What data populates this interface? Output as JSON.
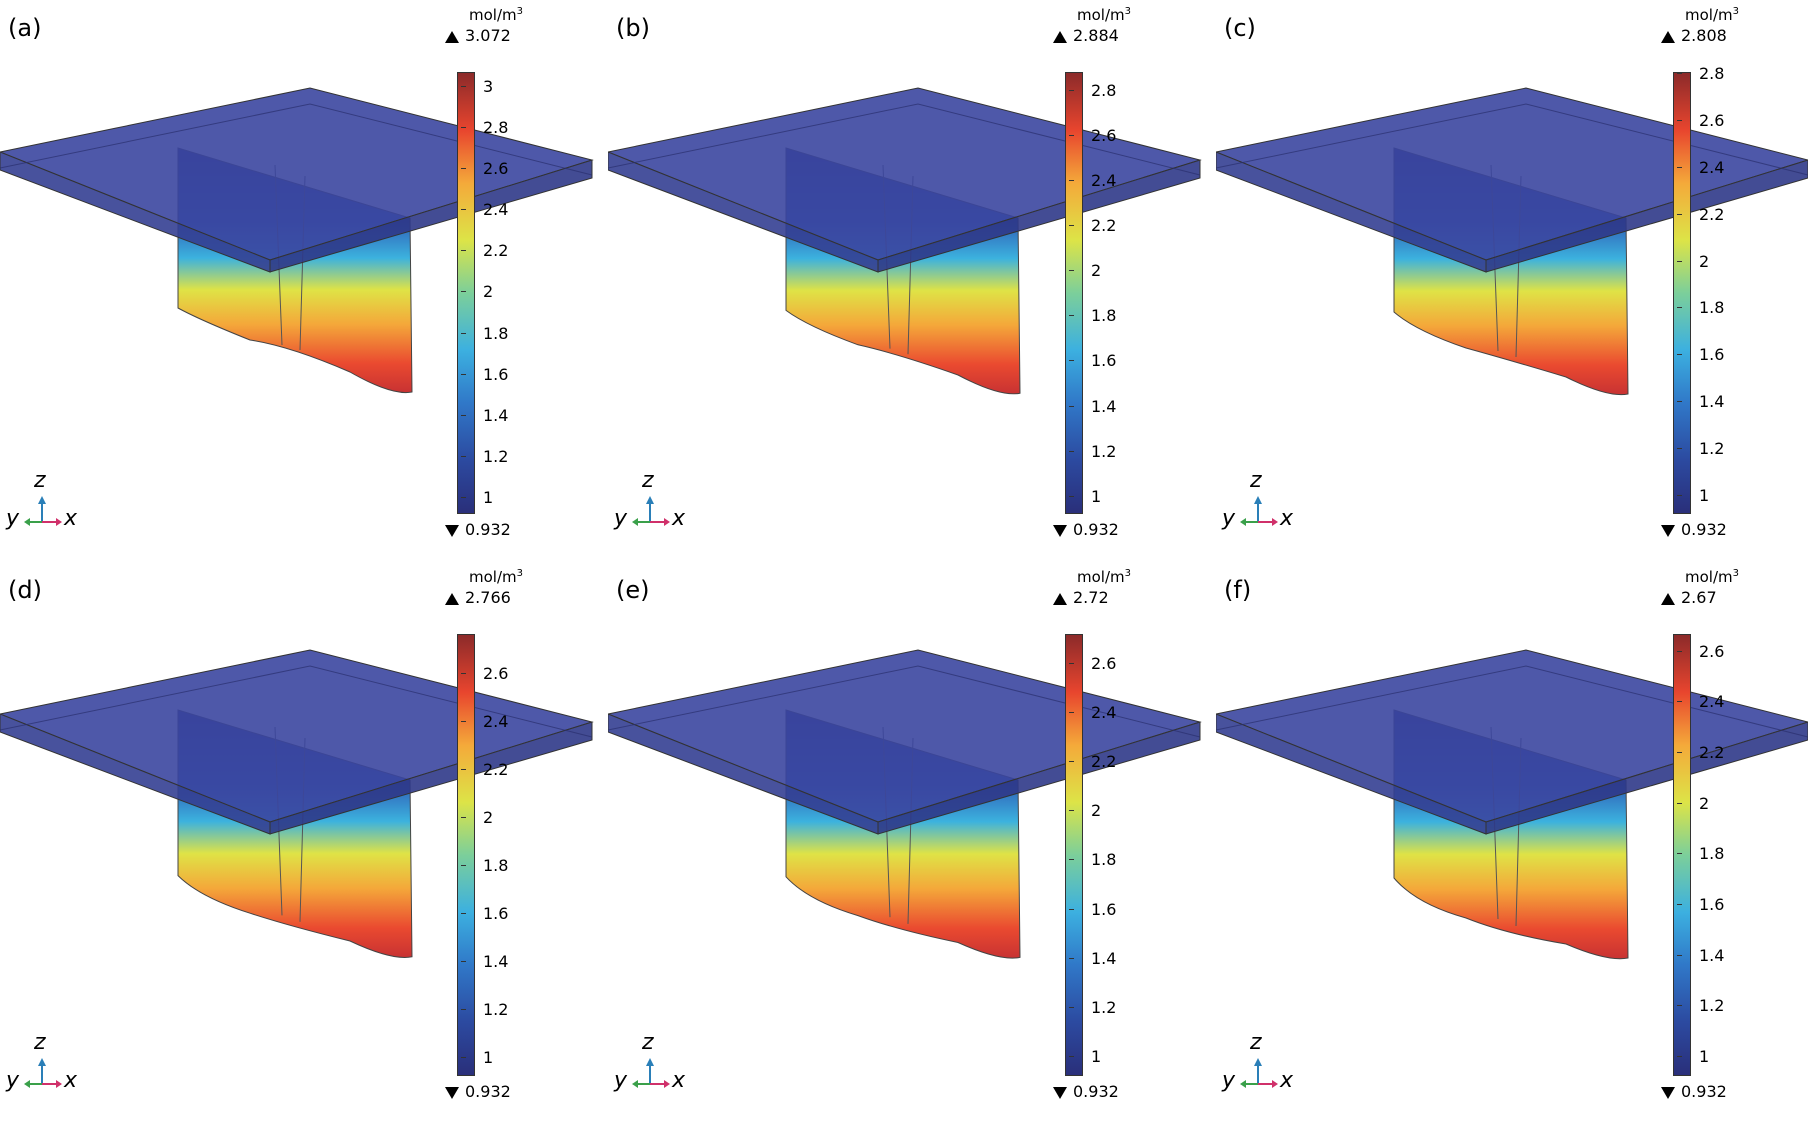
{
  "panels": [
    {
      "label": "(a)",
      "unit": "mol/m",
      "unit_sup": "3",
      "max": "3.072",
      "min": "0.932",
      "ticks": [
        "3",
        "2.8",
        "2.6",
        "2.4",
        "2.2",
        "2",
        "1.8",
        "1.6",
        "1.4",
        "1.2",
        "1"
      ],
      "tick_values": [
        3,
        2.8,
        2.6,
        2.4,
        2.2,
        2,
        1.8,
        1.6,
        1.4,
        1.2,
        1
      ],
      "vmax": 3.072,
      "vmin": 0.932,
      "bottom_wave": 0.0
    },
    {
      "label": "(b)",
      "unit": "mol/m",
      "unit_sup": "3",
      "max": "2.884",
      "min": "0.932",
      "ticks": [
        "2.8",
        "2.6",
        "2.4",
        "2.2",
        "2",
        "1.8",
        "1.6",
        "1.4",
        "1.2",
        "1"
      ],
      "tick_values": [
        2.8,
        2.6,
        2.4,
        2.2,
        2,
        1.8,
        1.6,
        1.4,
        1.2,
        1
      ],
      "vmax": 2.884,
      "vmin": 0.932,
      "bottom_wave": 0.3
    },
    {
      "label": "(c)",
      "unit": "mol/m",
      "unit_sup": "3",
      "max": "2.808",
      "min": "0.932",
      "ticks": [
        "2.8",
        "2.6",
        "2.4",
        "2.2",
        "2",
        "1.8",
        "1.6",
        "1.4",
        "1.2",
        "1"
      ],
      "tick_values": [
        2.8,
        2.6,
        2.4,
        2.2,
        2,
        1.8,
        1.6,
        1.4,
        1.2,
        1
      ],
      "vmax": 2.808,
      "vmin": 0.932,
      "bottom_wave": 0.5
    },
    {
      "label": "(d)",
      "unit": "mol/m",
      "unit_sup": "3",
      "max": "2.766",
      "min": "0.932",
      "ticks": [
        "2.6",
        "2.4",
        "2.2",
        "2",
        "1.8",
        "1.6",
        "1.4",
        "1.2",
        "1"
      ],
      "tick_values": [
        2.6,
        2.4,
        2.2,
        2,
        1.8,
        1.6,
        1.4,
        1.2,
        1
      ],
      "vmax": 2.766,
      "vmin": 0.932,
      "bottom_wave": 0.7
    },
    {
      "label": "(e)",
      "unit": "mol/m",
      "unit_sup": "3",
      "max": "2.72",
      "min": "0.932",
      "ticks": [
        "2.6",
        "2.4",
        "2.2",
        "2",
        "1.8",
        "1.6",
        "1.4",
        "1.2",
        "1"
      ],
      "tick_values": [
        2.6,
        2.4,
        2.2,
        2,
        1.8,
        1.6,
        1.4,
        1.2,
        1
      ],
      "vmax": 2.72,
      "vmin": 0.932,
      "bottom_wave": 0.85
    },
    {
      "label": "(f)",
      "unit": "mol/m",
      "unit_sup": "3",
      "max": "2.67",
      "min": "0.932",
      "ticks": [
        "2.6",
        "2.4",
        "2.2",
        "2",
        "1.8",
        "1.6",
        "1.4",
        "1.2",
        "1"
      ],
      "tick_values": [
        2.6,
        2.4,
        2.2,
        2,
        1.8,
        1.6,
        1.4,
        1.2,
        1
      ],
      "vmax": 2.67,
      "vmin": 0.932,
      "bottom_wave": 1.0
    }
  ],
  "axes_labels": {
    "z": "z",
    "y": "y",
    "x": "x"
  },
  "colors": {
    "plate": "#3b46a0",
    "cold": "#2c3f95",
    "mid": "#e6e43c",
    "hot": "#e8452e",
    "z_axis": "#2a7fb8",
    "y_axis": "#3aa04a",
    "x_axis": "#d0306a"
  }
}
